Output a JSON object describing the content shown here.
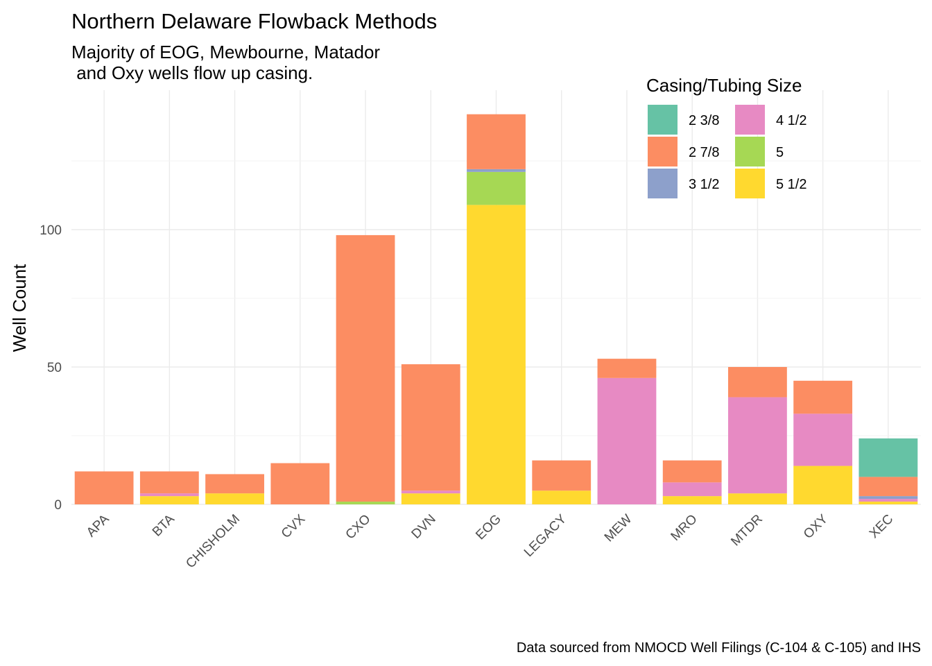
{
  "chart_data": {
    "type": "bar",
    "stacked": true,
    "title": "Northern Delaware Flowback Methods",
    "subtitle": [
      "Majority of EOG, Mewbourne, Matador",
      " and Oxy wells flow up casing."
    ],
    "xlabel": "",
    "ylabel": "Well Count",
    "caption": "Data sourced from NMOCD Well Filings (C-104 & C-105) and IHS",
    "ylim": [
      0,
      142
    ],
    "yticks": [
      0,
      50,
      100
    ],
    "grid": true,
    "legend": {
      "title": "Casing/Tubing Size",
      "position": "top-right",
      "columns": 2
    },
    "categories": [
      "APA",
      "BTA",
      "CHISHOLM",
      "CVX",
      "CXO",
      "DVN",
      "EOG",
      "LEGACY",
      "MEW",
      "MRO",
      "MTDR",
      "OXY",
      "XEC"
    ],
    "series": [
      {
        "name": "5 1/2",
        "color": "#FFD92F",
        "values": [
          0,
          3,
          4,
          0,
          0,
          4,
          109,
          5,
          0,
          3,
          4,
          14,
          1
        ]
      },
      {
        "name": "5",
        "color": "#A6D854",
        "values": [
          0,
          0,
          0,
          0,
          1,
          0,
          12,
          0,
          0,
          0,
          0,
          0,
          0
        ]
      },
      {
        "name": "4 1/2",
        "color": "#E78AC3",
        "values": [
          0,
          1,
          0,
          0,
          0,
          1,
          0,
          0,
          46,
          5,
          35,
          19,
          1
        ]
      },
      {
        "name": "3 1/2",
        "color": "#8DA0CB",
        "values": [
          0,
          0,
          0,
          0,
          0,
          0,
          1,
          0,
          0,
          0,
          0,
          0,
          1
        ]
      },
      {
        "name": "2 7/8",
        "color": "#FC8D62",
        "values": [
          12,
          8,
          7,
          15,
          97,
          46,
          20,
          11,
          7,
          8,
          11,
          12,
          7
        ]
      },
      {
        "name": "2 3/8",
        "color": "#66C2A5",
        "values": [
          0,
          0,
          0,
          0,
          0,
          0,
          0,
          0,
          0,
          0,
          0,
          0,
          14
        ]
      }
    ],
    "legend_order": [
      "2 3/8",
      "2 7/8",
      "3 1/2",
      "4 1/2",
      "5",
      "5 1/2"
    ]
  }
}
